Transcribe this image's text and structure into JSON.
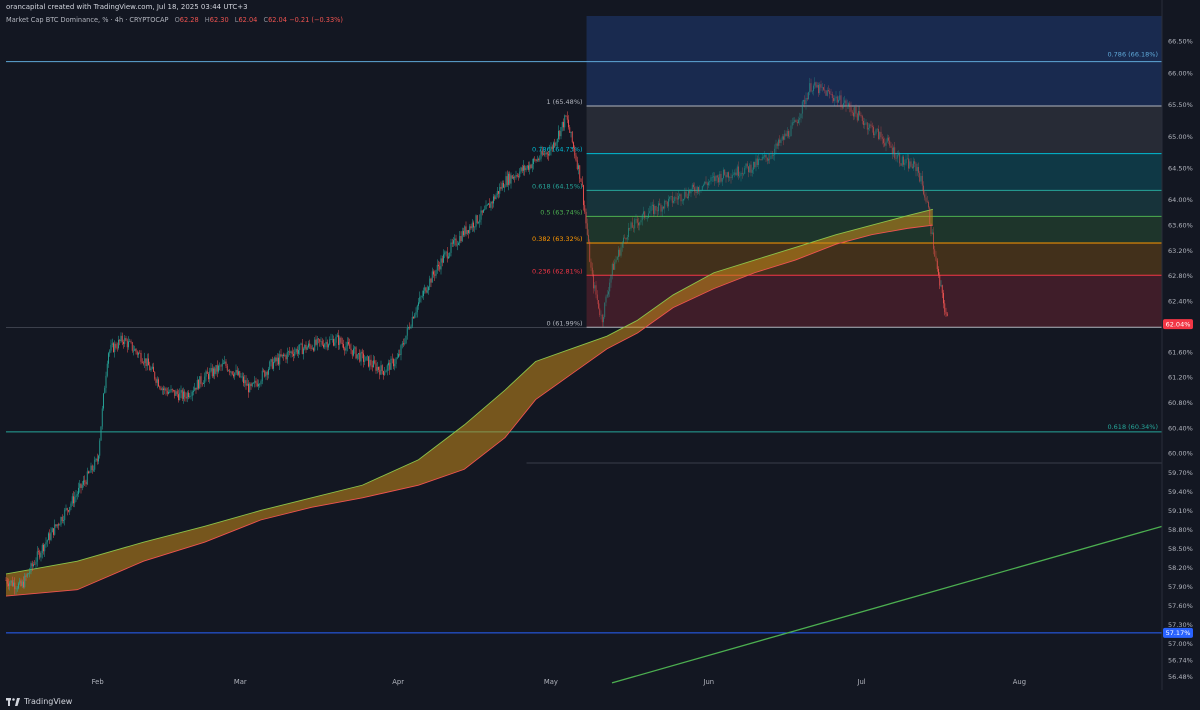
{
  "header": {
    "credit": "orancapital created with TradingView.com, Jul 18, 2025 03:44 UTC+3",
    "symbol": "Market Cap BTC Dominance, % · 4h · CRYPTOCAP",
    "o_label": "O",
    "o_value": "62.28",
    "h_label": "H",
    "h_value": "62.30",
    "l_label": "L",
    "l_value": "62.04",
    "c_label": "C",
    "c_value": "62.04",
    "change": "−0.21 (−0.33%)",
    "unit_button": "%"
  },
  "footer": {
    "brand": "TradingView"
  },
  "colors": {
    "background": "#131722",
    "up": "#26a69a",
    "down": "#ef5350",
    "fib_top_zone": "#1f3a74",
    "current_price_badge": "#f23645",
    "support_badge": "#2962ff"
  },
  "chart_data": {
    "type": "candlestick",
    "timeframe": "4h",
    "y_axis": {
      "ylim": [
        56.3,
        66.9
      ],
      "tick_labels": [
        "66.50%",
        "66.00%",
        "65.50%",
        "65.00%",
        "64.50%",
        "64.00%",
        "63.60%",
        "63.20%",
        "62.80%",
        "62.40%",
        "62.04%",
        "61.60%",
        "61.20%",
        "60.80%",
        "60.40%",
        "60.00%",
        "59.70%",
        "59.40%",
        "59.10%",
        "58.80%",
        "58.50%",
        "58.20%",
        "57.90%",
        "57.60%",
        "57.30%",
        "57.17%",
        "57.00%",
        "56.74%",
        "56.48%"
      ],
      "tick_values": [
        66.5,
        66.0,
        65.5,
        65.0,
        64.5,
        64.0,
        63.6,
        63.2,
        62.8,
        62.4,
        62.04,
        61.6,
        61.2,
        60.8,
        60.4,
        60.0,
        59.7,
        59.4,
        59.1,
        58.8,
        58.5,
        58.2,
        57.9,
        57.6,
        57.3,
        57.17,
        57.0,
        56.74,
        56.48
      ]
    },
    "x_axis": {
      "labels": [
        "Feb",
        "Mar",
        "Apr",
        "May",
        "Jun",
        "Jul",
        "Aug"
      ],
      "values": [
        "2025-02-01",
        "2025-03-01",
        "2025-04-01",
        "2025-05-01",
        "2025-06-01",
        "2025-07-01",
        "2025-08-01"
      ],
      "xlim": [
        "2025-01-14",
        "2025-08-29"
      ]
    },
    "price_path": {
      "x": [
        "2025-01-14",
        "2025-01-17",
        "2025-01-21",
        "2025-01-25",
        "2025-01-29",
        "2025-02-01",
        "2025-02-03",
        "2025-02-06",
        "2025-02-10",
        "2025-02-14",
        "2025-02-18",
        "2025-02-22",
        "2025-02-26",
        "2025-03-01",
        "2025-03-03",
        "2025-03-07",
        "2025-03-11",
        "2025-03-15",
        "2025-03-20",
        "2025-03-25",
        "2025-03-29",
        "2025-04-01",
        "2025-04-04",
        "2025-04-07",
        "2025-04-10",
        "2025-04-14",
        "2025-04-18",
        "2025-04-22",
        "2025-04-26",
        "2025-05-01",
        "2025-05-04",
        "2025-05-07",
        "2025-05-09",
        "2025-05-11",
        "2025-05-13",
        "2025-05-16",
        "2025-05-20",
        "2025-05-25",
        "2025-05-30",
        "2025-06-04",
        "2025-06-09",
        "2025-06-13",
        "2025-06-18",
        "2025-06-21",
        "2025-06-24",
        "2025-06-28",
        "2025-07-02",
        "2025-07-06",
        "2025-07-09",
        "2025-07-12",
        "2025-07-14",
        "2025-07-16",
        "2025-07-18"
      ],
      "y": [
        58.0,
        57.9,
        58.5,
        59.0,
        59.5,
        59.9,
        61.6,
        61.8,
        61.5,
        61.0,
        60.9,
        61.2,
        61.4,
        61.2,
        61.0,
        61.4,
        61.6,
        61.7,
        61.8,
        61.5,
        61.3,
        61.5,
        62.2,
        62.7,
        63.1,
        63.5,
        63.8,
        64.3,
        64.5,
        64.8,
        65.3,
        64.3,
        62.8,
        62.1,
        62.9,
        63.5,
        63.8,
        64.0,
        64.2,
        64.4,
        64.5,
        64.7,
        65.2,
        65.8,
        65.7,
        65.5,
        65.2,
        64.9,
        64.6,
        64.5,
        63.9,
        62.8,
        62.04
      ]
    },
    "horizontal_levels": [
      {
        "value": 66.18,
        "color": "#5fa8d8",
        "label": ""
      },
      {
        "value": 60.34,
        "color": "#26a69a",
        "label": "0.618 (60.34%)"
      },
      {
        "value": 57.17,
        "color": "#2962ff",
        "label": ""
      }
    ],
    "fibonacci": {
      "anchor_start": "2025-05-08",
      "anchor_end": "2025-08-29",
      "levels": [
        {
          "ratio": "1",
          "value": 65.48,
          "label": "1 (65.48%)",
          "color": "#b2b5be"
        },
        {
          "ratio": "0.786",
          "value": 64.73,
          "label": "0.786 (64.73%)",
          "color": "#00bcd4"
        },
        {
          "ratio": "0.618",
          "value": 64.15,
          "label": "0.618 (64.15%)",
          "color": "#26a69a"
        },
        {
          "ratio": "0.5",
          "value": 63.74,
          "label": "0.5 (63.74%)",
          "color": "#4caf50"
        },
        {
          "ratio": "0.382",
          "value": 63.32,
          "label": "0.382 (63.32%)",
          "color": "#ff9800"
        },
        {
          "ratio": "0.236",
          "value": 62.81,
          "label": "0.236 (62.81%)",
          "color": "#f23645"
        },
        {
          "ratio": "0",
          "value": 61.99,
          "label": "0 (61.99%)",
          "color": "#b2b5be"
        }
      ],
      "extension_top": {
        "value": 66.18,
        "label": "0.786 (66.18%)",
        "color": "#5fa8d8"
      },
      "faint_level": {
        "value": 59.85,
        "label": ""
      }
    },
    "moving_average_band": {
      "x": [
        "2025-01-14",
        "2025-01-28",
        "2025-02-10",
        "2025-02-22",
        "2025-03-05",
        "2025-03-15",
        "2025-03-25",
        "2025-04-05",
        "2025-04-14",
        "2025-04-22",
        "2025-04-28",
        "2025-05-05",
        "2025-05-12",
        "2025-05-18",
        "2025-05-25",
        "2025-06-02",
        "2025-06-10",
        "2025-06-18",
        "2025-06-26",
        "2025-07-03",
        "2025-07-10",
        "2025-07-15"
      ],
      "upper": [
        58.1,
        58.3,
        58.6,
        58.85,
        59.1,
        59.3,
        59.5,
        59.9,
        60.45,
        61.0,
        61.45,
        61.65,
        61.85,
        62.1,
        62.5,
        62.85,
        63.05,
        63.25,
        63.45,
        63.6,
        63.75,
        63.85
      ],
      "lower": [
        57.75,
        57.85,
        58.3,
        58.6,
        58.95,
        59.15,
        59.3,
        59.5,
        59.75,
        60.25,
        60.85,
        61.25,
        61.65,
        61.9,
        62.3,
        62.6,
        62.85,
        63.05,
        63.3,
        63.45,
        63.55,
        63.6
      ]
    },
    "trendline": {
      "x": [
        "2025-05-13",
        "2025-08-29"
      ],
      "y": [
        56.38,
        58.85
      ],
      "color": "#4caf50"
    },
    "current_price": {
      "value": 62.04,
      "label": "62.04%"
    },
    "support_badge": {
      "value": 57.17,
      "label": "57.17%"
    }
  }
}
